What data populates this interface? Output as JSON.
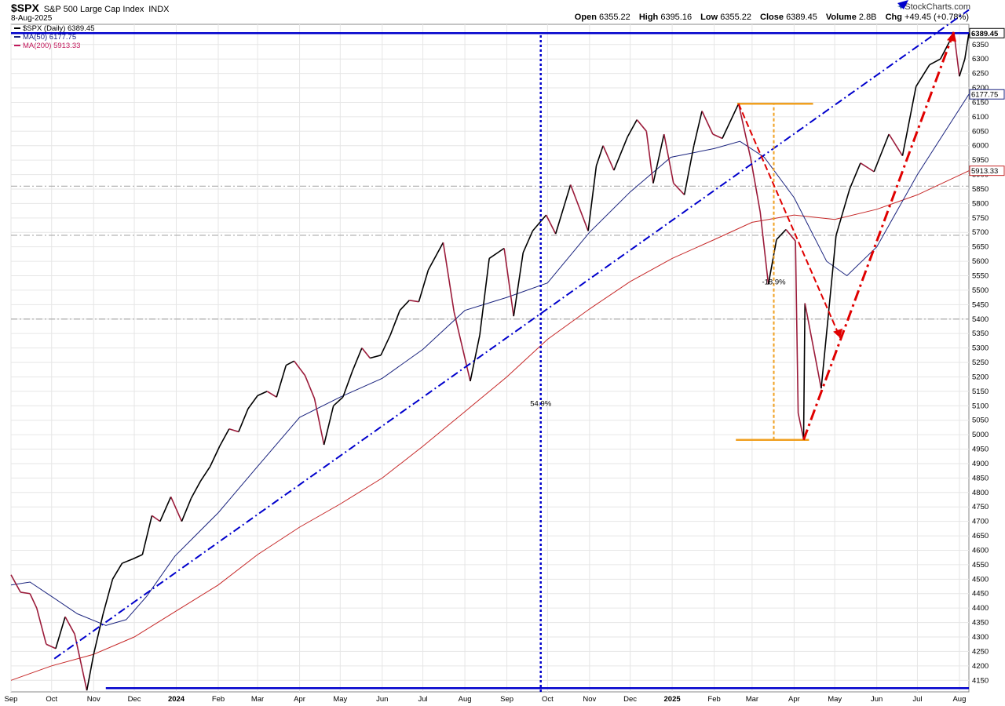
{
  "header": {
    "symbol": "$SPX",
    "name": "S&P 500 Large Cap Index",
    "exchange": "INDX",
    "date": "8-Aug-2025",
    "open_label": "Open",
    "open": "6355.22",
    "high_label": "High",
    "high": "6395.16",
    "low_label": "Low",
    "low": "6355.22",
    "close_label": "Close",
    "close": "6389.45",
    "volume_label": "Volume",
    "volume": "2.8B",
    "chg_label": "Chg",
    "chg": "+49.45 (+0.78%)",
    "logo": "StockCharts.com"
  },
  "legend": [
    {
      "text": "$SPX (Daily) 6389.45",
      "color": "#000000"
    },
    {
      "text": "MA(50) 6177.75",
      "color": "#1a237e"
    },
    {
      "text": "MA(200) 5913.33",
      "color": "#c2185b"
    }
  ],
  "colors": {
    "price": "#000000",
    "price_down": "#9b1b3a",
    "ma50": "#1a237e",
    "ma200": "#c62828",
    "trend_blue": "#0000cc",
    "trend_red": "#e00000",
    "orange": "#f0a020"
  },
  "chart_data": {
    "type": "line",
    "title": "$SPX S&P 500 Large Cap Index INDX",
    "x_range": [
      "2023-09-01",
      "2025-08-08"
    ],
    "ylim": [
      4110,
      6420
    ],
    "y_ticks": [
      4150,
      4200,
      4250,
      4300,
      4350,
      4400,
      4450,
      4500,
      4550,
      4600,
      4650,
      4700,
      4750,
      4800,
      4850,
      4900,
      4950,
      5000,
      5050,
      5100,
      5150,
      5200,
      5250,
      5300,
      5350,
      5400,
      5450,
      5500,
      5550,
      5600,
      5650,
      5700,
      5750,
      5800,
      5850,
      5900,
      5950,
      6000,
      6050,
      6100,
      6150,
      6200,
      6250,
      6300,
      6350
    ],
    "x_ticks": [
      {
        "label": "Sep",
        "date": "2023-09-01",
        "bold": false
      },
      {
        "label": "Oct",
        "date": "2023-10-01",
        "bold": false
      },
      {
        "label": "Nov",
        "date": "2023-11-01",
        "bold": false
      },
      {
        "label": "Dec",
        "date": "2023-12-01",
        "bold": false
      },
      {
        "label": "2024",
        "date": "2024-01-01",
        "bold": true
      },
      {
        "label": "Feb",
        "date": "2024-02-01",
        "bold": false
      },
      {
        "label": "Mar",
        "date": "2024-03-01",
        "bold": false
      },
      {
        "label": "Apr",
        "date": "2024-04-01",
        "bold": false
      },
      {
        "label": "May",
        "date": "2024-05-01",
        "bold": false
      },
      {
        "label": "Jun",
        "date": "2024-06-01",
        "bold": false
      },
      {
        "label": "Jul",
        "date": "2024-07-01",
        "bold": false
      },
      {
        "label": "Aug",
        "date": "2024-08-01",
        "bold": false
      },
      {
        "label": "Sep",
        "date": "2024-09-01",
        "bold": false
      },
      {
        "label": "Oct",
        "date": "2024-10-01",
        "bold": false
      },
      {
        "label": "Nov",
        "date": "2024-11-01",
        "bold": false
      },
      {
        "label": "Dec",
        "date": "2024-12-01",
        "bold": false
      },
      {
        "label": "2025",
        "date": "2025-01-01",
        "bold": true
      },
      {
        "label": "Feb",
        "date": "2025-02-01",
        "bold": false
      },
      {
        "label": "Mar",
        "date": "2025-03-01",
        "bold": false
      },
      {
        "label": "Apr",
        "date": "2025-04-01",
        "bold": false
      },
      {
        "label": "May",
        "date": "2025-05-01",
        "bold": false
      },
      {
        "label": "Jun",
        "date": "2025-06-01",
        "bold": false
      },
      {
        "label": "Jul",
        "date": "2025-07-01",
        "bold": false
      },
      {
        "label": "Aug",
        "date": "2025-08-01",
        "bold": false
      }
    ],
    "series": [
      {
        "name": "$SPX (Daily)",
        "points": [
          [
            "2023-09-01",
            4515
          ],
          [
            "2023-09-08",
            4455
          ],
          [
            "2023-09-15",
            4450
          ],
          [
            "2023-09-20",
            4400
          ],
          [
            "2023-09-27",
            4275
          ],
          [
            "2023-10-04",
            4260
          ],
          [
            "2023-10-11",
            4370
          ],
          [
            "2023-10-18",
            4310
          ],
          [
            "2023-10-27",
            4115
          ],
          [
            "2023-11-01",
            4240
          ],
          [
            "2023-11-08",
            4380
          ],
          [
            "2023-11-15",
            4500
          ],
          [
            "2023-11-22",
            4555
          ],
          [
            "2023-11-30",
            4570
          ],
          [
            "2023-12-07",
            4585
          ],
          [
            "2023-12-14",
            4720
          ],
          [
            "2023-12-20",
            4700
          ],
          [
            "2023-12-28",
            4785
          ],
          [
            "2024-01-05",
            4700
          ],
          [
            "2024-01-12",
            4780
          ],
          [
            "2024-01-19",
            4840
          ],
          [
            "2024-01-26",
            4890
          ],
          [
            "2024-02-02",
            4960
          ],
          [
            "2024-02-09",
            5020
          ],
          [
            "2024-02-16",
            5010
          ],
          [
            "2024-02-23",
            5090
          ],
          [
            "2024-03-01",
            5135
          ],
          [
            "2024-03-08",
            5150
          ],
          [
            "2024-03-15",
            5130
          ],
          [
            "2024-03-22",
            5240
          ],
          [
            "2024-03-28",
            5255
          ],
          [
            "2024-04-05",
            5205
          ],
          [
            "2024-04-12",
            5125
          ],
          [
            "2024-04-19",
            4965
          ],
          [
            "2024-04-26",
            5100
          ],
          [
            "2024-05-03",
            5130
          ],
          [
            "2024-05-10",
            5220
          ],
          [
            "2024-05-17",
            5300
          ],
          [
            "2024-05-23",
            5265
          ],
          [
            "2024-05-31",
            5275
          ],
          [
            "2024-06-07",
            5345
          ],
          [
            "2024-06-14",
            5430
          ],
          [
            "2024-06-21",
            5465
          ],
          [
            "2024-06-28",
            5460
          ],
          [
            "2024-07-05",
            5570
          ],
          [
            "2024-07-16",
            5665
          ],
          [
            "2024-07-24",
            5425
          ],
          [
            "2024-08-05",
            5185
          ],
          [
            "2024-08-12",
            5345
          ],
          [
            "2024-08-19",
            5610
          ],
          [
            "2024-08-30",
            5645
          ],
          [
            "2024-09-06",
            5410
          ],
          [
            "2024-09-13",
            5630
          ],
          [
            "2024-09-20",
            5705
          ],
          [
            "2024-09-30",
            5760
          ],
          [
            "2024-10-07",
            5695
          ],
          [
            "2024-10-18",
            5865
          ],
          [
            "2024-10-31",
            5705
          ],
          [
            "2024-11-06",
            5930
          ],
          [
            "2024-11-11",
            6000
          ],
          [
            "2024-11-19",
            5915
          ],
          [
            "2024-11-29",
            6030
          ],
          [
            "2024-12-06",
            6090
          ],
          [
            "2024-12-13",
            6050
          ],
          [
            "2024-12-18",
            5870
          ],
          [
            "2024-12-26",
            6040
          ],
          [
            "2025-01-02",
            5870
          ],
          [
            "2025-01-10",
            5830
          ],
          [
            "2025-01-17",
            6000
          ],
          [
            "2025-01-23",
            6120
          ],
          [
            "2025-01-31",
            6040
          ],
          [
            "2025-02-07",
            6025
          ],
          [
            "2025-02-19",
            6145
          ],
          [
            "2025-02-28",
            5955
          ],
          [
            "2025-03-07",
            5770
          ],
          [
            "2025-03-13",
            5520
          ],
          [
            "2025-03-19",
            5675
          ],
          [
            "2025-03-26",
            5710
          ],
          [
            "2025-04-02",
            5670
          ],
          [
            "2025-04-04",
            5075
          ],
          [
            "2025-04-08",
            4985
          ],
          [
            "2025-04-09",
            5455
          ],
          [
            "2025-04-21",
            5160
          ],
          [
            "2025-05-02",
            5690
          ],
          [
            "2025-05-12",
            5850
          ],
          [
            "2025-05-20",
            5940
          ],
          [
            "2025-05-30",
            5910
          ],
          [
            "2025-06-10",
            6040
          ],
          [
            "2025-06-20",
            5965
          ],
          [
            "2025-06-30",
            6205
          ],
          [
            "2025-07-10",
            6280
          ],
          [
            "2025-07-18",
            6300
          ],
          [
            "2025-07-28",
            6390
          ],
          [
            "2025-08-01",
            6240
          ],
          [
            "2025-08-05",
            6300
          ],
          [
            "2025-08-08",
            6389.45
          ]
        ]
      },
      {
        "name": "MA(50)",
        "points": [
          [
            "2023-09-01",
            4480
          ],
          [
            "2023-09-15",
            4490
          ],
          [
            "2023-10-01",
            4440
          ],
          [
            "2023-10-20",
            4380
          ],
          [
            "2023-11-10",
            4340
          ],
          [
            "2023-11-25",
            4360
          ],
          [
            "2023-12-10",
            4440
          ],
          [
            "2023-12-31",
            4580
          ],
          [
            "2024-02-01",
            4730
          ],
          [
            "2024-03-01",
            4890
          ],
          [
            "2024-04-01",
            5060
          ],
          [
            "2024-05-01",
            5130
          ],
          [
            "2024-06-01",
            5195
          ],
          [
            "2024-07-01",
            5295
          ],
          [
            "2024-08-01",
            5430
          ],
          [
            "2024-09-01",
            5475
          ],
          [
            "2024-10-01",
            5525
          ],
          [
            "2024-11-01",
            5700
          ],
          [
            "2024-12-01",
            5840
          ],
          [
            "2024-12-31",
            5960
          ],
          [
            "2025-02-01",
            5990
          ],
          [
            "2025-02-20",
            6015
          ],
          [
            "2025-03-10",
            5960
          ],
          [
            "2025-04-01",
            5820
          ],
          [
            "2025-04-25",
            5600
          ],
          [
            "2025-05-10",
            5550
          ],
          [
            "2025-06-01",
            5650
          ],
          [
            "2025-07-01",
            5900
          ],
          [
            "2025-08-08",
            6177.75
          ]
        ]
      },
      {
        "name": "MA(200)",
        "points": [
          [
            "2023-09-01",
            4150
          ],
          [
            "2023-10-01",
            4200
          ],
          [
            "2023-11-01",
            4240
          ],
          [
            "2023-12-01",
            4300
          ],
          [
            "2024-01-01",
            4390
          ],
          [
            "2024-02-01",
            4480
          ],
          [
            "2024-03-01",
            4585
          ],
          [
            "2024-04-01",
            4680
          ],
          [
            "2024-05-01",
            4760
          ],
          [
            "2024-06-01",
            4850
          ],
          [
            "2024-07-01",
            4960
          ],
          [
            "2024-08-01",
            5080
          ],
          [
            "2024-09-01",
            5200
          ],
          [
            "2024-10-01",
            5330
          ],
          [
            "2024-11-01",
            5435
          ],
          [
            "2024-12-01",
            5530
          ],
          [
            "2025-01-01",
            5610
          ],
          [
            "2025-02-01",
            5675
          ],
          [
            "2025-03-01",
            5735
          ],
          [
            "2025-04-01",
            5760
          ],
          [
            "2025-05-01",
            5745
          ],
          [
            "2025-06-01",
            5780
          ],
          [
            "2025-07-01",
            5830
          ],
          [
            "2025-08-08",
            5913.33
          ]
        ]
      }
    ],
    "last_values": [
      {
        "value": 6389.45,
        "label": "6389.45",
        "color": "#000000"
      },
      {
        "value": 6177.75,
        "label": "6177.75",
        "color": "#1a237e"
      },
      {
        "value": 5913.33,
        "label": "5913.33",
        "color": "#c62828"
      }
    ],
    "annotations": [
      {
        "kind": "dashdot",
        "color": "#0000cc",
        "from": [
          "2023-10-03",
          4225
        ],
        "to": [
          "2025-08-08",
          6470
        ]
      },
      {
        "kind": "hline",
        "color": "#0000cc",
        "y": 6389.45,
        "from": "2023-09-01",
        "to": "2025-08-08"
      },
      {
        "kind": "hline",
        "color": "#0000cc",
        "y": 4123,
        "from": "2023-11-10",
        "to": "2025-08-08"
      },
      {
        "kind": "vline",
        "color": "#0000cc",
        "x": "2024-09-26",
        "from": 4110,
        "to": 6389.45
      },
      {
        "kind": "label",
        "text": "54.9%",
        "at": [
          "2024-09-26",
          5100
        ]
      },
      {
        "kind": "hline_gray",
        "y": 5860
      },
      {
        "kind": "hline_gray",
        "y": 5690
      },
      {
        "kind": "hline_gray",
        "y": 5400
      },
      {
        "kind": "orange_h",
        "y": 6145,
        "from": "2025-02-18",
        "to": "2025-04-15"
      },
      {
        "kind": "orange_h",
        "y": 4982,
        "from": "2025-02-17",
        "to": "2025-04-12"
      },
      {
        "kind": "orange_v",
        "x": "2025-03-17",
        "from": 4982,
        "to": 6145
      },
      {
        "kind": "label",
        "text": "-18.9%",
        "at": [
          "2025-03-17",
          5520
        ]
      },
      {
        "kind": "red_dashed",
        "from": [
          "2025-02-19",
          6145
        ],
        "to": [
          "2025-05-05",
          5335
        ]
      },
      {
        "kind": "red_dashdot",
        "from": [
          "2025-04-08",
          4982
        ],
        "to": [
          "2025-07-28",
          6395
        ]
      }
    ]
  }
}
